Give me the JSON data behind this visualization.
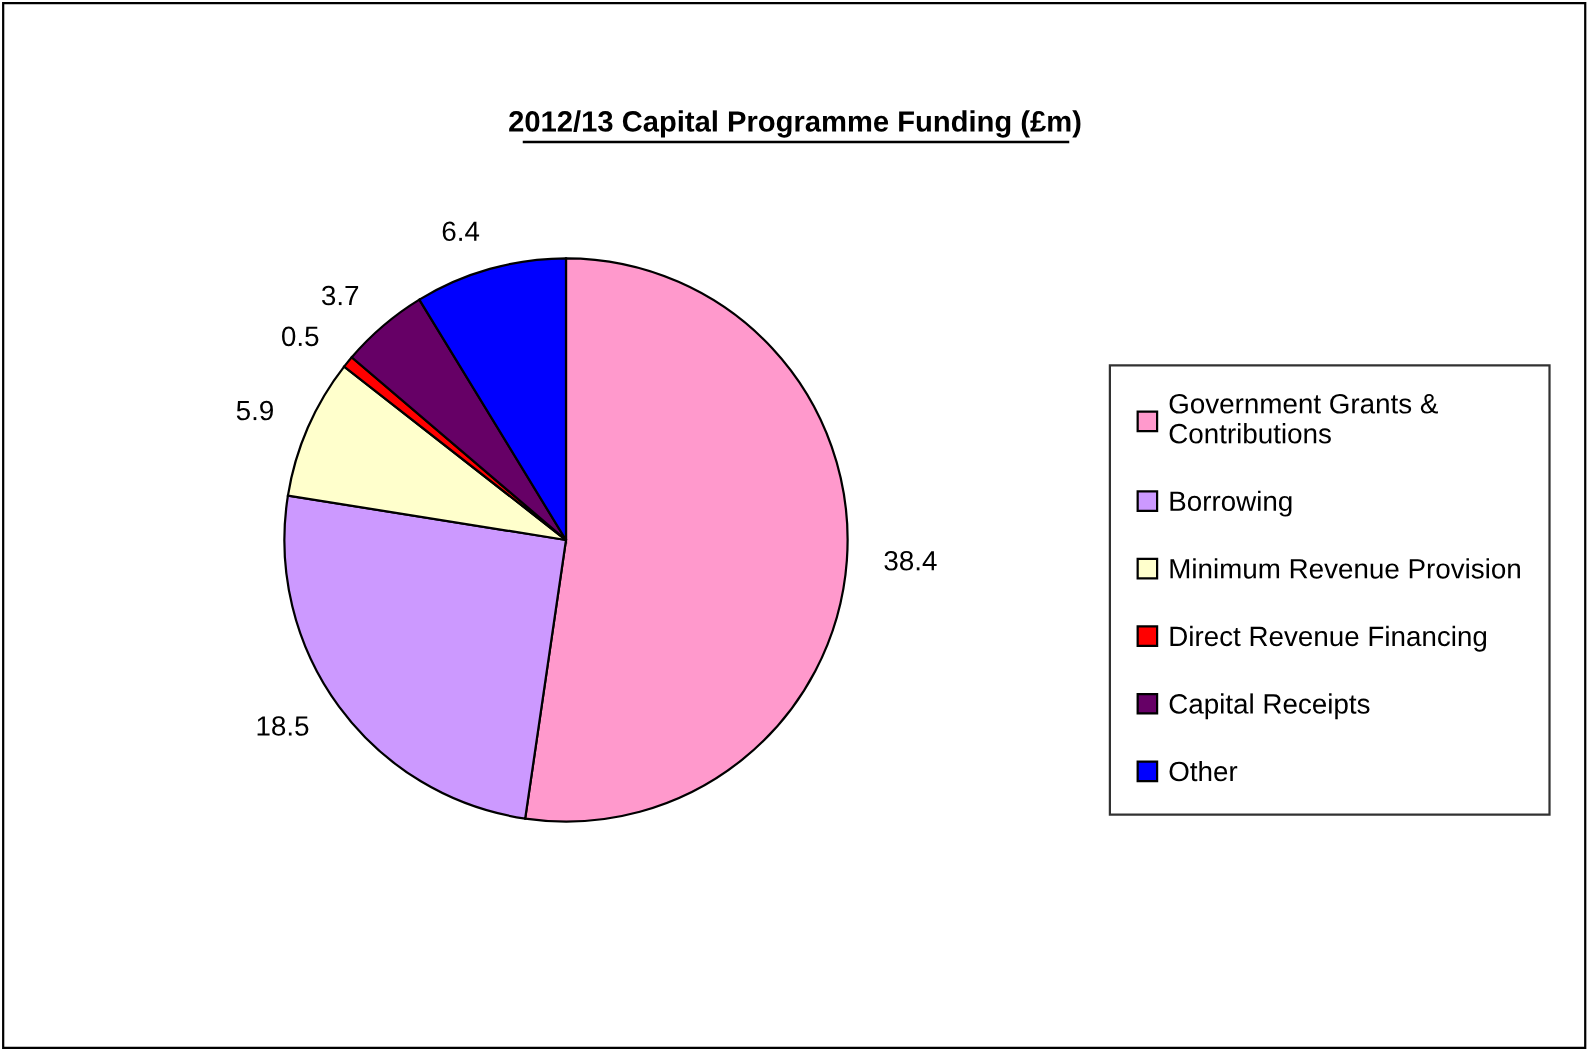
{
  "chart_data": {
    "type": "pie",
    "title": "2012/13 Capital Programme Funding (£m)",
    "categories": [
      "Government Grants & Contributions",
      "Borrowing",
      "Minimum Revenue Provision",
      "Direct Revenue Financing",
      "Capital Receipts",
      "Other"
    ],
    "values": [
      38.4,
      18.5,
      5.9,
      0.5,
      3.7,
      6.4
    ],
    "colors": [
      "#ff99cc",
      "#cc99ff",
      "#ffffcc",
      "#ff0000",
      "#660066",
      "#0000ff"
    ],
    "data_labels": true,
    "legend": "right"
  }
}
